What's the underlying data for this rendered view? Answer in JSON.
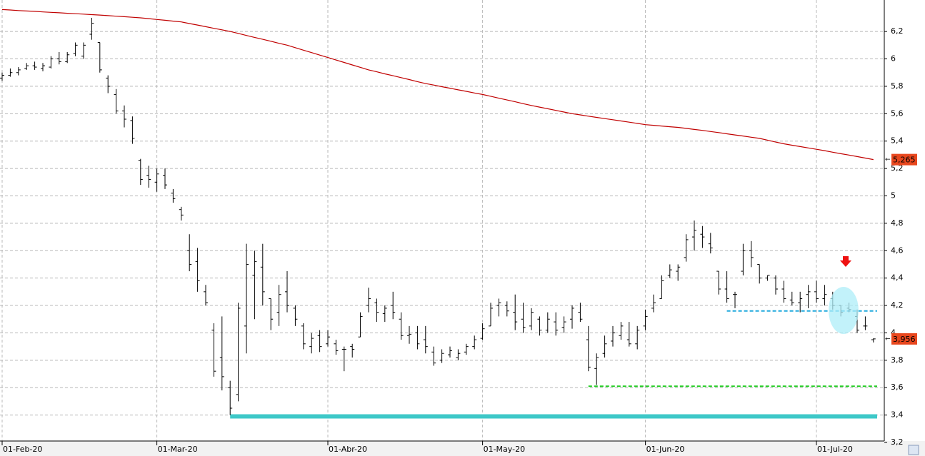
{
  "chart_data": {
    "type": "ohlc",
    "categories": [
      "01-Feb-20",
      null,
      null,
      null,
      null,
      null,
      null,
      null,
      null,
      null,
      null,
      null,
      null,
      null,
      null,
      null,
      null,
      null,
      null,
      "01-Mar-20",
      null,
      null,
      null,
      null,
      null,
      null,
      null,
      null,
      null,
      null,
      null,
      null,
      null,
      null,
      null,
      null,
      null,
      null,
      null,
      null,
      "01-Abr-20",
      null,
      null,
      null,
      null,
      null,
      null,
      null,
      null,
      null,
      null,
      null,
      null,
      null,
      null,
      null,
      null,
      null,
      null,
      "01-May-20",
      null,
      null,
      null,
      null,
      null,
      null,
      null,
      null,
      null,
      null,
      null,
      null,
      null,
      null,
      null,
      null,
      null,
      null,
      null,
      "01-Jun-20",
      null,
      null,
      null,
      null,
      null,
      null,
      null,
      null,
      null,
      null,
      null,
      null,
      null,
      null,
      null,
      null,
      null,
      null,
      null,
      null,
      "01-Jul-20",
      null,
      null,
      null,
      null,
      null,
      null,
      null
    ],
    "open": [
      5.86,
      5.88,
      5.9,
      5.93,
      5.95,
      5.93,
      5.94,
      6.0,
      5.98,
      6.04,
      6.02,
      6.18,
      6.12,
      5.86,
      5.74,
      5.62,
      5.55,
      5.26,
      5.15,
      5.1,
      5.15,
      5.02,
      4.9,
      4.6,
      4.52,
      4.3,
      4.02,
      3.82,
      3.6,
      3.55,
      4.05,
      4.42,
      4.48,
      4.25,
      4.15,
      4.3,
      4.18,
      4.05,
      3.9,
      3.98,
      3.92,
      3.92,
      3.88,
      3.9,
      3.97,
      4.2,
      4.22,
      4.14,
      4.2,
      4.1,
      3.98,
      4.0,
      3.95,
      3.86,
      3.8,
      3.84,
      3.82,
      3.86,
      3.9,
      3.96,
      4.05,
      4.2,
      4.2,
      4.15,
      4.1,
      4.05,
      4.1,
      4.02,
      4.08,
      4.04,
      4.1,
      4.15,
      3.95,
      3.74,
      3.85,
      3.94,
      3.98,
      3.95,
      3.92,
      4.05,
      4.18,
      4.25,
      4.42,
      4.45,
      4.55,
      4.7,
      4.72,
      4.65,
      4.45,
      4.32,
      4.28,
      4.45,
      4.6,
      4.5,
      4.4,
      4.4,
      4.32,
      4.24,
      4.22,
      4.28,
      4.3,
      4.25,
      4.25,
      4.2,
      4.18,
      4.12,
      4.05,
      3.95
    ],
    "high": [
      5.9,
      5.93,
      5.94,
      5.97,
      5.98,
      5.97,
      6.02,
      6.05,
      6.05,
      6.12,
      6.12,
      6.3,
      6.12,
      5.88,
      5.78,
      5.66,
      5.58,
      5.27,
      5.22,
      5.2,
      5.2,
      5.05,
      4.92,
      4.72,
      4.62,
      4.35,
      4.07,
      4.12,
      3.65,
      4.22,
      4.65,
      4.6,
      4.65,
      4.25,
      4.35,
      4.45,
      4.2,
      4.07,
      4.0,
      4.02,
      4.02,
      3.95,
      3.9,
      3.92,
      4.15,
      4.33,
      4.25,
      4.2,
      4.3,
      4.15,
      4.05,
      4.05,
      4.05,
      3.9,
      3.88,
      3.9,
      3.88,
      3.92,
      3.98,
      4.07,
      4.22,
      4.25,
      4.23,
      4.28,
      4.22,
      4.18,
      4.12,
      4.15,
      4.15,
      4.12,
      4.2,
      4.22,
      4.05,
      3.85,
      3.98,
      4.05,
      4.08,
      4.08,
      4.05,
      4.17,
      4.28,
      4.42,
      4.5,
      4.5,
      4.72,
      4.82,
      4.78,
      4.73,
      4.45,
      4.45,
      4.3,
      4.65,
      4.67,
      4.5,
      4.42,
      4.42,
      4.38,
      4.3,
      4.3,
      4.35,
      4.38,
      4.35,
      4.3,
      4.2,
      4.22,
      4.17,
      4.12,
      3.96
    ],
    "low": [
      5.84,
      5.87,
      5.88,
      5.92,
      5.92,
      5.91,
      5.93,
      5.96,
      5.97,
      6.02,
      6.0,
      6.14,
      5.9,
      5.75,
      5.6,
      5.5,
      5.38,
      5.08,
      5.06,
      5.03,
      5.05,
      4.95,
      4.82,
      4.45,
      4.3,
      4.2,
      3.68,
      3.58,
      3.4,
      3.5,
      3.85,
      4.1,
      4.2,
      4.02,
      4.05,
      4.15,
      4.05,
      3.88,
      3.85,
      3.86,
      3.9,
      3.84,
      3.72,
      3.82,
      3.97,
      4.15,
      4.08,
      4.08,
      4.1,
      3.95,
      3.92,
      3.88,
      3.85,
      3.76,
      3.78,
      3.82,
      3.8,
      3.84,
      3.88,
      3.95,
      4.05,
      4.12,
      4.12,
      4.02,
      4.0,
      4.02,
      3.98,
      4.0,
      3.98,
      4.0,
      4.03,
      4.08,
      3.72,
      3.62,
      3.82,
      3.9,
      3.95,
      3.9,
      3.88,
      4.02,
      4.15,
      4.25,
      4.4,
      4.38,
      4.52,
      4.6,
      4.62,
      4.58,
      4.28,
      4.22,
      4.18,
      4.42,
      4.48,
      4.36,
      4.38,
      4.28,
      4.22,
      4.2,
      4.15,
      4.18,
      4.22,
      4.2,
      4.17,
      4.12,
      4.15,
      4.0,
      4.02,
      3.93
    ],
    "close": [
      5.88,
      5.9,
      5.92,
      5.95,
      5.94,
      5.95,
      6.0,
      5.98,
      6.03,
      6.1,
      6.1,
      6.26,
      5.92,
      5.8,
      5.62,
      5.56,
      5.42,
      5.12,
      5.12,
      5.16,
      5.08,
      4.98,
      4.86,
      4.5,
      4.38,
      4.22,
      3.72,
      3.68,
      3.45,
      4.18,
      4.5,
      4.52,
      4.3,
      4.1,
      4.28,
      4.2,
      4.1,
      3.92,
      3.96,
      3.9,
      3.97,
      3.87,
      3.88,
      3.88,
      4.12,
      4.25,
      4.15,
      4.18,
      4.15,
      3.98,
      3.99,
      3.92,
      3.9,
      3.78,
      3.85,
      3.87,
      3.85,
      3.9,
      3.95,
      4.03,
      4.18,
      4.22,
      4.16,
      4.08,
      4.04,
      4.15,
      4.02,
      4.1,
      4.02,
      4.08,
      4.18,
      4.1,
      3.75,
      3.82,
      3.92,
      4.0,
      4.05,
      3.92,
      4.02,
      4.12,
      4.22,
      4.38,
      4.46,
      4.48,
      4.68,
      4.75,
      4.7,
      4.62,
      4.32,
      4.25,
      4.28,
      4.6,
      4.55,
      4.4,
      4.42,
      4.32,
      4.25,
      4.22,
      4.25,
      4.3,
      4.25,
      4.28,
      4.2,
      4.15,
      4.17,
      4.02,
      4.05,
      3.956
    ],
    "color": "#000000",
    "moving_average": {
      "color": "#c00000",
      "values": [
        6.36,
        6.357,
        6.353,
        6.35,
        6.347,
        6.343,
        6.34,
        6.337,
        6.333,
        6.33,
        6.327,
        6.323,
        6.32,
        6.316,
        6.312,
        6.308,
        6.304,
        6.3,
        6.294,
        6.288,
        6.282,
        6.276,
        6.27,
        6.258,
        6.247,
        6.235,
        6.223,
        6.212,
        6.2,
        6.186,
        6.171,
        6.157,
        6.143,
        6.129,
        6.114,
        6.1,
        6.082,
        6.064,
        6.046,
        6.028,
        6.01,
        5.992,
        5.974,
        5.956,
        5.938,
        5.92,
        5.906,
        5.891,
        5.877,
        5.863,
        5.849,
        5.834,
        5.82,
        5.809,
        5.797,
        5.786,
        5.774,
        5.763,
        5.751,
        5.74,
        5.727,
        5.713,
        5.7,
        5.687,
        5.673,
        5.66,
        5.648,
        5.636,
        5.624,
        5.612,
        5.6,
        5.591,
        5.582,
        5.573,
        5.564,
        5.556,
        5.547,
        5.538,
        5.529,
        5.52,
        5.515,
        5.51,
        5.505,
        5.5,
        5.493,
        5.485,
        5.478,
        5.47,
        5.462,
        5.453,
        5.445,
        5.437,
        5.428,
        5.42,
        5.407,
        5.393,
        5.38,
        5.37,
        5.36,
        5.35,
        5.34,
        5.33,
        5.319,
        5.308,
        5.298,
        5.287,
        5.276,
        5.265
      ]
    },
    "price_tags": [
      {
        "value": 5.265,
        "label": "5,265",
        "color": "#e8471e"
      },
      {
        "value": 3.956,
        "label": "3,956",
        "color": "#e8471e"
      }
    ],
    "levels": [
      {
        "value": 3.39,
        "color": "#3ec8c8",
        "dashed": false,
        "from_index": 28
      },
      {
        "value": 3.61,
        "color": "#22cc22",
        "dashed": true,
        "from_index": 72
      },
      {
        "value": 4.16,
        "color": "#22aadd",
        "dashed": true,
        "from_index": 89
      }
    ],
    "ylim": [
      3.2,
      6.43
    ],
    "yticks": [
      {
        "value": 3.2,
        "label": "3,2"
      },
      {
        "value": 3.4,
        "label": "3,4"
      },
      {
        "value": 3.6,
        "label": "3,6"
      },
      {
        "value": 3.8,
        "label": "3,8"
      },
      4,
      {
        "value": 4.2,
        "label": "4,2"
      },
      {
        "value": 4.4,
        "label": "4,4"
      },
      {
        "value": 4.6,
        "label": "4,6"
      },
      {
        "value": 4.8,
        "label": "4,8"
      },
      5,
      {
        "value": 5.2,
        "label": "5,2"
      },
      {
        "value": 5.4,
        "label": "5,4"
      },
      {
        "value": 5.6,
        "label": "5,6"
      },
      {
        "value": 5.8,
        "label": "5,8"
      },
      6,
      {
        "value": 6.2,
        "label": "6,2"
      }
    ],
    "grid": true
  }
}
